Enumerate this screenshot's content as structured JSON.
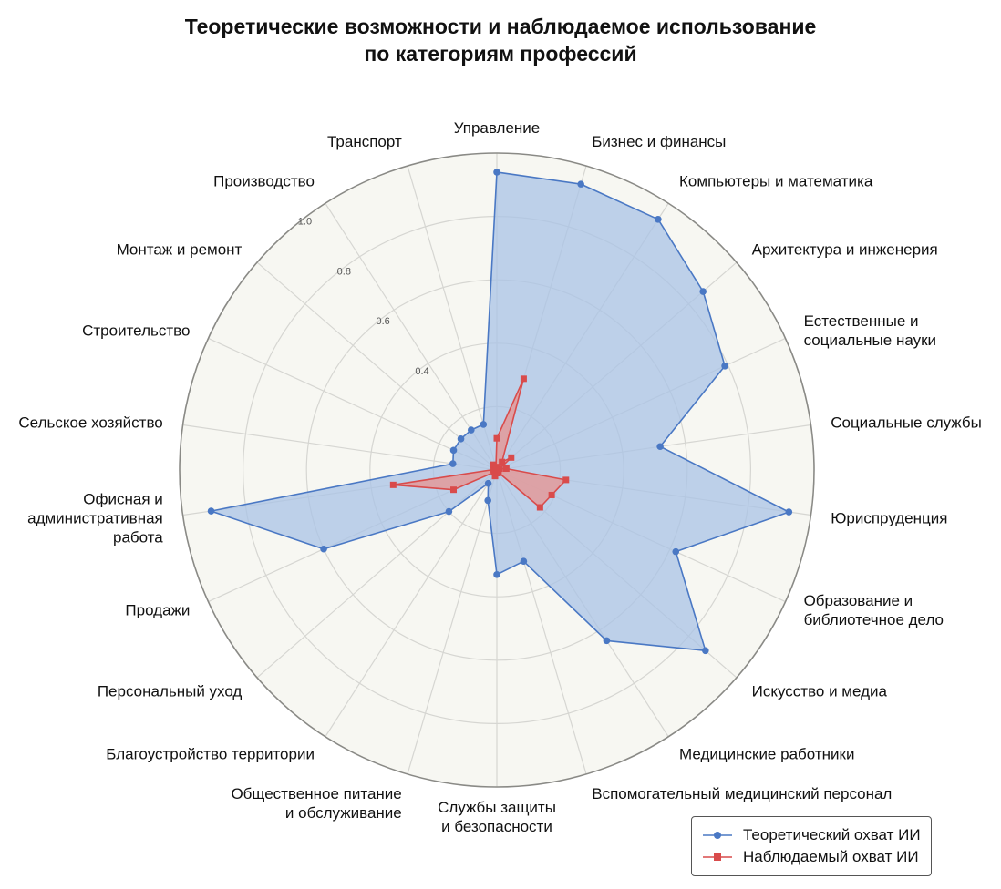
{
  "title": {
    "line1": "Теоретические возможности и наблюдаемое использование",
    "line2": "по категориям профессий"
  },
  "chart_data": {
    "type": "radar",
    "categories": [
      "Управление",
      "Бизнес и финансы",
      "Компьютеры и математика",
      "Архитектура и инженерия",
      "Естественные и социальные науки",
      "Социальные службы",
      "Юриспруденция",
      "Образование и библиотечное дело",
      "Искусство и медиа",
      "Медицинские работники",
      "Вспомогательный медицинский персонал",
      "Службы защиты и безопасности",
      "Общественное питание и обслуживание",
      "Благоустройство территории",
      "Персональный уход",
      "Продажи",
      "Офисная и административная работа",
      "Сельское хозяйство",
      "Строительство",
      "Монтаж и ремонт",
      "Производство",
      "Транспорт"
    ],
    "category_label_lines": [
      [
        "Управление"
      ],
      [
        "Бизнес и финансы"
      ],
      [
        "Компьютеры и математика"
      ],
      [
        "Архитектура и инженерия"
      ],
      [
        "Естественные и",
        "социальные науки"
      ],
      [
        "Социальные службы"
      ],
      [
        "Юриспруденция"
      ],
      [
        "Образование и",
        "библиотечное дело"
      ],
      [
        "Искусство и медиа"
      ],
      [
        "Медицинские работники"
      ],
      [
        "Вспомогательный медицинский персонал"
      ],
      [
        "Службы защиты",
        "и безопасности"
      ],
      [
        "Общественное питание",
        "и обслуживание"
      ],
      [
        "Благоустройство территории"
      ],
      [
        "Персональный уход"
      ],
      [
        "Продажи"
      ],
      [
        "Офисная и",
        "административная",
        "работа"
      ],
      [
        "Сельское хозяйство"
      ],
      [
        "Строительство"
      ],
      [
        "Монтаж и ремонт"
      ],
      [
        "Производство"
      ],
      [
        "Транспорт"
      ]
    ],
    "series": [
      {
        "name": "Теоретический охват ИИ",
        "color": "#4a78c4",
        "fill": "#a9c3e6",
        "marker": "circle",
        "values": [
          0.94,
          0.94,
          0.94,
          0.86,
          0.79,
          0.52,
          0.93,
          0.62,
          0.87,
          0.64,
          0.3,
          0.33,
          0.1,
          0.05,
          0.2,
          0.6,
          0.91,
          0.14,
          0.15,
          0.15,
          0.15,
          0.15
        ]
      },
      {
        "name": "Наблюдаемый охват ИИ",
        "color": "#d94b4b",
        "fill": "#e39a9a",
        "marker": "square",
        "values": [
          0.1,
          0.3,
          0.03,
          0.06,
          0.01,
          0.03,
          0.22,
          0.19,
          0.18,
          0.01,
          0.01,
          0.01,
          0.02,
          0.01,
          0.01,
          0.15,
          0.33,
          0.01,
          0.01,
          0.01,
          0.02,
          0.01
        ]
      }
    ],
    "radial_ticks": [
      0.4,
      0.6,
      0.8,
      1.0
    ],
    "radial_tick_labels": [
      "0.4",
      "0.6",
      "0.8",
      "1.0"
    ],
    "rlim": [
      0,
      1.0
    ],
    "grid": true,
    "legend_position": "bottom-right"
  }
}
